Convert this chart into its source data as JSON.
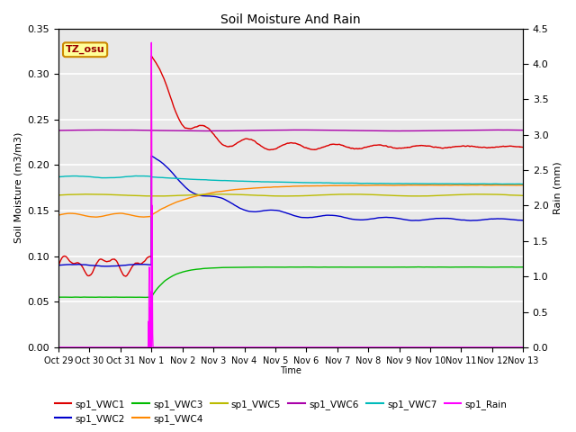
{
  "title": "Soil Moisture And Rain",
  "xlabel": "Time",
  "ylabel_left": "Soil Moisture (m3/m3)",
  "ylabel_right": "Rain (mm)",
  "annotation": "TZ_osu",
  "ylim_left": [
    0,
    0.35
  ],
  "ylim_right": [
    0.0,
    4.5
  ],
  "x_tick_labels": [
    "Oct 29",
    "Oct 30",
    "Oct 31",
    "Nov 1",
    "Nov 2",
    "Nov 3",
    "Nov 4",
    "Nov 5",
    "Nov 6",
    "Nov 7",
    "Nov 8",
    "Nov 9",
    "Nov 10",
    "Nov 11",
    "Nov 12",
    "Nov 13"
  ],
  "background_color": "#ffffff",
  "plot_bg_color": "#e8e8e8",
  "series": {
    "VWC1": {
      "color": "#dd0000",
      "label": "sp1_VWC1"
    },
    "VWC2": {
      "color": "#0000cc",
      "label": "sp1_VWC2"
    },
    "VWC3": {
      "color": "#00bb00",
      "label": "sp1_VWC3"
    },
    "VWC4": {
      "color": "#ff8800",
      "label": "sp1_VWC4"
    },
    "VWC5": {
      "color": "#bbbb00",
      "label": "sp1_VWC5"
    },
    "VWC6": {
      "color": "#aa00aa",
      "label": "sp1_VWC6"
    },
    "VWC7": {
      "color": "#00bbbb",
      "label": "sp1_VWC7"
    },
    "Rain": {
      "color": "#ff00ff",
      "label": "sp1_Rain"
    }
  },
  "legend_order": [
    "VWC1",
    "VWC2",
    "VWC3",
    "VWC4",
    "VWC5",
    "VWC6",
    "VWC7",
    "Rain"
  ]
}
